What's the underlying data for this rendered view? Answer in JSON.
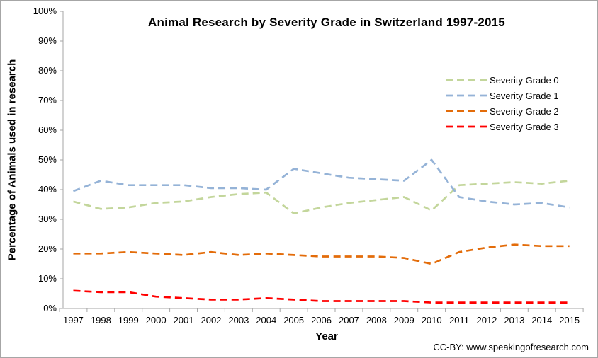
{
  "footer": {
    "text": "CC-BY: www.speakingofresearch.com"
  },
  "axis": {
    "y_tick_labels": [
      "0%",
      "10%",
      "20%",
      "30%",
      "40%",
      "50%",
      "60%",
      "70%",
      "80%",
      "90%",
      "100%"
    ]
  },
  "chart_data": {
    "type": "line",
    "title": "Animal Research by Severity Grade in Switzerland 1997-2015",
    "xlabel": "Year",
    "ylabel": "Percentage of Animals used in research",
    "x": [
      1997,
      1998,
      1999,
      2000,
      2001,
      2002,
      2003,
      2004,
      2005,
      2006,
      2007,
      2008,
      2009,
      2010,
      2011,
      2012,
      2013,
      2014,
      2015
    ],
    "ylim": [
      0,
      100
    ],
    "y_tick_step": 10,
    "grid": false,
    "line_style": "dashed",
    "legend_position": "inside-upper-right",
    "axis_color": "#a6a6a6",
    "series": [
      {
        "name": "Severity Grade 0",
        "color": "#c3d69b",
        "values": [
          36,
          33.5,
          34,
          35.5,
          36,
          37.5,
          38.5,
          39,
          32,
          34,
          35.5,
          36.5,
          37.5,
          33,
          41.5,
          42,
          42.5,
          42,
          43
        ]
      },
      {
        "name": "Severity Grade 1",
        "color": "#95b3d7",
        "values": [
          39.5,
          43,
          41.5,
          41.5,
          41.5,
          40.5,
          40.5,
          40,
          47,
          45.5,
          44,
          43.5,
          43,
          50,
          37.5,
          36,
          35,
          35.5,
          34
        ]
      },
      {
        "name": "Severity Grade 2",
        "color": "#e36c0a",
        "values": [
          18.5,
          18.5,
          19,
          18.5,
          18,
          19,
          18,
          18.5,
          18,
          17.5,
          17.5,
          17.5,
          17,
          15,
          19,
          20.5,
          21.5,
          21,
          21
        ]
      },
      {
        "name": "Severity Grade 3",
        "color": "#ff0000",
        "values": [
          6,
          5.5,
          5.5,
          4,
          3.5,
          3,
          3,
          3.5,
          3,
          2.5,
          2.5,
          2.5,
          2.5,
          2,
          2,
          2,
          2,
          2,
          2
        ]
      }
    ]
  }
}
